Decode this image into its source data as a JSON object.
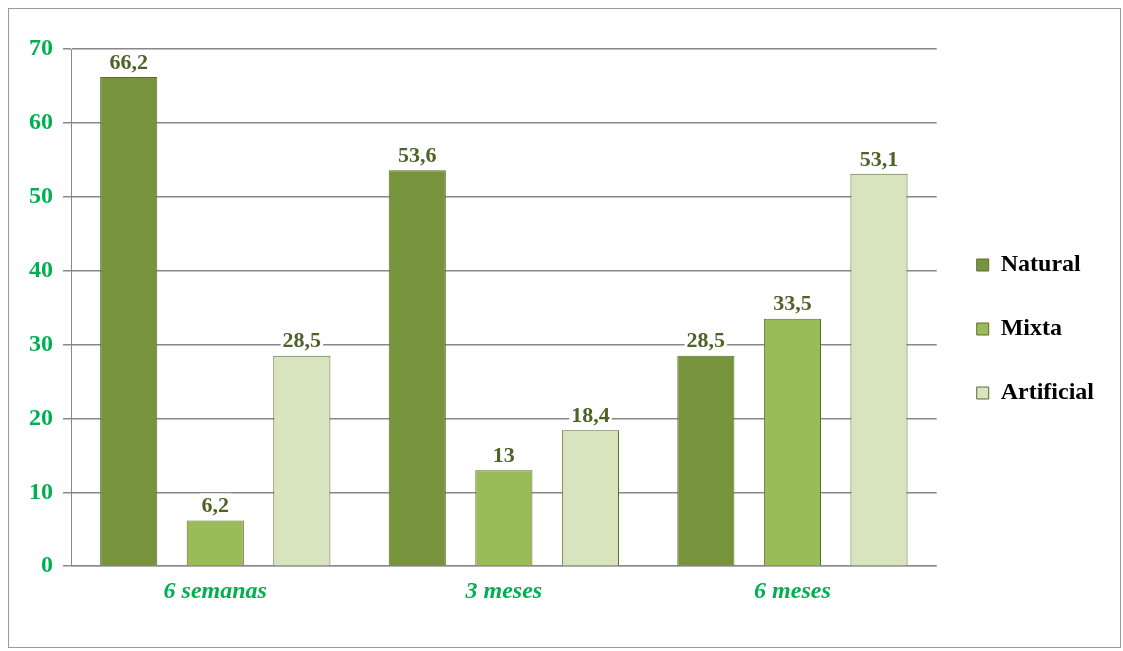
{
  "chart_data": {
    "type": "bar",
    "categories": [
      "6 semanas",
      "3 meses",
      "6 meses"
    ],
    "series": [
      {
        "name": "Natural",
        "color": "#77933c",
        "values": [
          66.2,
          53.6,
          28.5
        ],
        "value_labels": [
          "66,2",
          "53,6",
          "28,5"
        ]
      },
      {
        "name": "Mixta",
        "color": "#9bbb59",
        "values": [
          6.2,
          13,
          33.5
        ],
        "value_labels": [
          "6,2",
          "13",
          "33,5"
        ]
      },
      {
        "name": "Artificial",
        "color": "#d7e4bd",
        "values": [
          28.5,
          18.4,
          53.1
        ],
        "value_labels": [
          "28,5",
          "18,4",
          "53,1"
        ]
      }
    ],
    "ylim": [
      0,
      70
    ],
    "yticks": [
      0,
      10,
      20,
      30,
      40,
      50,
      60,
      70
    ],
    "grid": "y",
    "legend": "right"
  }
}
